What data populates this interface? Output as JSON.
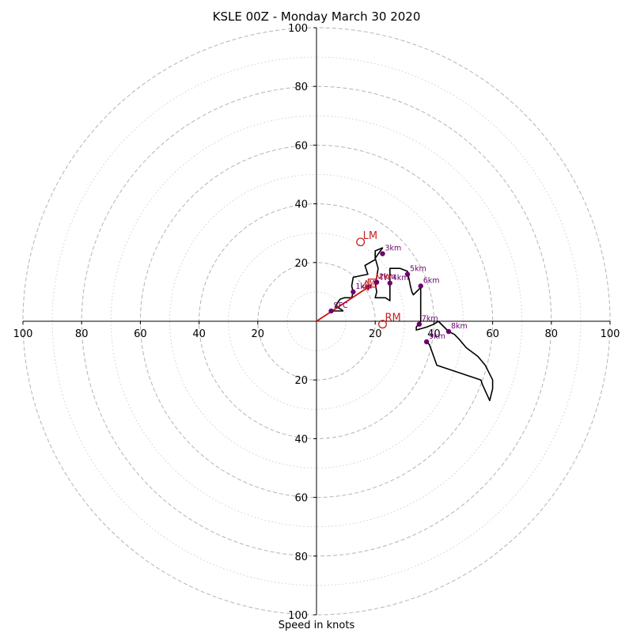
{
  "chart_data": {
    "type": "line",
    "title": "KSLE 00Z - Monday March 30 2020",
    "xlabel": "Speed in knots",
    "ylabel": "",
    "xlim": [
      -100,
      100
    ],
    "ylim": [
      -100,
      100
    ],
    "grid": true,
    "rings_major": [
      20,
      40,
      60,
      80,
      100
    ],
    "rings_minor": [
      10,
      30,
      50,
      70,
      90
    ],
    "axis_tick_labels": [
      "100",
      "80",
      "60",
      "40",
      "20",
      "20",
      "40",
      "60",
      "80",
      "100"
    ],
    "series": [
      {
        "type": "line",
        "color": "#000000",
        "points": [
          [
            5,
            3.5
          ],
          [
            7,
            3.5
          ],
          [
            9,
            3.5
          ],
          [
            8.5,
            4
          ],
          [
            6.5,
            5
          ],
          [
            7,
            6
          ],
          [
            8,
            7.5
          ],
          [
            9.5,
            8
          ],
          [
            12,
            8
          ],
          [
            12.5,
            10
          ],
          [
            12,
            12
          ],
          [
            12.5,
            15
          ],
          [
            17.5,
            16
          ],
          [
            16.5,
            19
          ],
          [
            20,
            21
          ],
          [
            20,
            24
          ],
          [
            22.5,
            25
          ],
          [
            20,
            21.5
          ],
          [
            21,
            18
          ],
          [
            20.5,
            15
          ],
          [
            20,
            13
          ],
          [
            20.5,
            10
          ],
          [
            20,
            8
          ],
          [
            23.5,
            8
          ],
          [
            25,
            7
          ],
          [
            25,
            10
          ],
          [
            25,
            15
          ],
          [
            25,
            18
          ],
          [
            28.5,
            18
          ],
          [
            31,
            17
          ],
          [
            32,
            12
          ],
          [
            32.5,
            10
          ],
          [
            33,
            9
          ],
          [
            35,
            11
          ],
          [
            35.5,
            12
          ],
          [
            35.5,
            8
          ],
          [
            35.5,
            5
          ],
          [
            35.5,
            0
          ],
          [
            34,
            -2
          ],
          [
            34,
            -3
          ],
          [
            37.5,
            -2
          ],
          [
            40,
            -1
          ],
          [
            41.5,
            0
          ],
          [
            45,
            -3.5
          ],
          [
            47,
            -4.5
          ],
          [
            48.5,
            -6
          ],
          [
            51,
            -9
          ],
          [
            55,
            -12
          ],
          [
            57.5,
            -15
          ],
          [
            60,
            -20
          ],
          [
            60,
            -23
          ],
          [
            59,
            -27
          ],
          [
            56.5,
            -21.5
          ],
          [
            56,
            -20
          ],
          [
            41,
            -15
          ],
          [
            38.5,
            -8
          ],
          [
            37.5,
            -7
          ]
        ]
      },
      {
        "type": "arrow",
        "name": "mean wind",
        "color": "#d01010",
        "from": [
          0,
          0
        ],
        "to": [
          19,
          12.5
        ]
      }
    ],
    "height_markers": [
      {
        "label": "SFC",
        "x": 5,
        "y": 3.5
      },
      {
        "label": "1km",
        "x": 12.5,
        "y": 10
      },
      {
        "label": "3km",
        "x": 22.5,
        "y": 23
      },
      {
        "label": "4km",
        "x": 25,
        "y": 13
      },
      {
        "label": "5km",
        "x": 31,
        "y": 16
      },
      {
        "label": "6km",
        "x": 35.5,
        "y": 12
      },
      {
        "label": "7km",
        "x": 35,
        "y": -1
      },
      {
        "label": "8km",
        "x": 45,
        "y": -3.5
      },
      {
        "label": "9km",
        "x": 37.5,
        "y": -7
      },
      {
        "label": "2km",
        "x": 20.5,
        "y": 13.3
      }
    ],
    "points_overlay": [
      {
        "label": "LM",
        "symbol": "circle",
        "x": 15,
        "y": 27,
        "color": "#c82020"
      },
      {
        "label": "RM",
        "symbol": "circle",
        "x": 22.5,
        "y": -1,
        "color": "#c82020"
      },
      {
        "label": "MW",
        "symbol": "square",
        "x": 19,
        "y": 13,
        "color": "#c82020"
      },
      {
        "label": "LM",
        "symbol": "triangle",
        "x": 17,
        "y": 12.5,
        "color": "#c82020"
      }
    ],
    "colors": {
      "trace": "#000000",
      "markers": "#6e006e",
      "motion": "#c82020",
      "mean_wind": "#d01010",
      "grid": "#b4b4b4"
    }
  }
}
